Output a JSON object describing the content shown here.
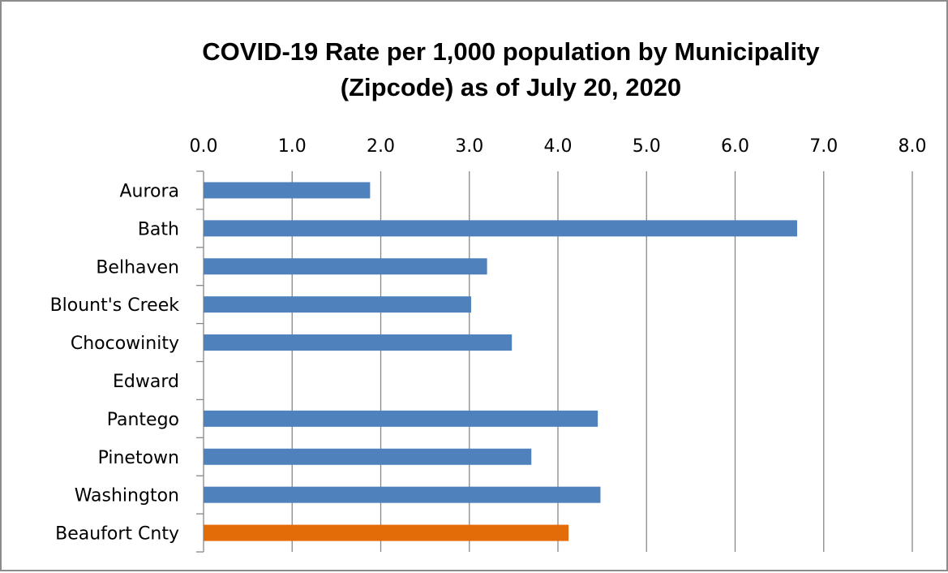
{
  "chart_data": {
    "type": "bar",
    "orientation": "horizontal",
    "title_lines": [
      "COVID-19 Rate per 1,000 population  by Municipality",
      "(Zipcode) as of July 20, 2020"
    ],
    "categories": [
      "Aurora",
      "Bath",
      "Belhaven",
      "Blount's Creek",
      "Chocowinity",
      "Edward",
      "Pantego",
      "Pinetown",
      "Washington",
      "Beaufort Cnty"
    ],
    "values": [
      1.88,
      6.7,
      3.2,
      3.02,
      3.48,
      0,
      4.45,
      3.7,
      4.48,
      4.12
    ],
    "bar_colors": [
      "#4f81bd",
      "#4f81bd",
      "#4f81bd",
      "#4f81bd",
      "#4f81bd",
      "#4f81bd",
      "#4f81bd",
      "#4f81bd",
      "#4f81bd",
      "#e36c09"
    ],
    "xlim": [
      0,
      8
    ],
    "x_ticks": [
      "0.0",
      "1.0",
      "2.0",
      "3.0",
      "4.0",
      "5.0",
      "6.0",
      "7.0",
      "8.0"
    ],
    "x_axis_position": "top",
    "grid": "vertical",
    "legend": "none",
    "xlabel": "",
    "ylabel": ""
  }
}
